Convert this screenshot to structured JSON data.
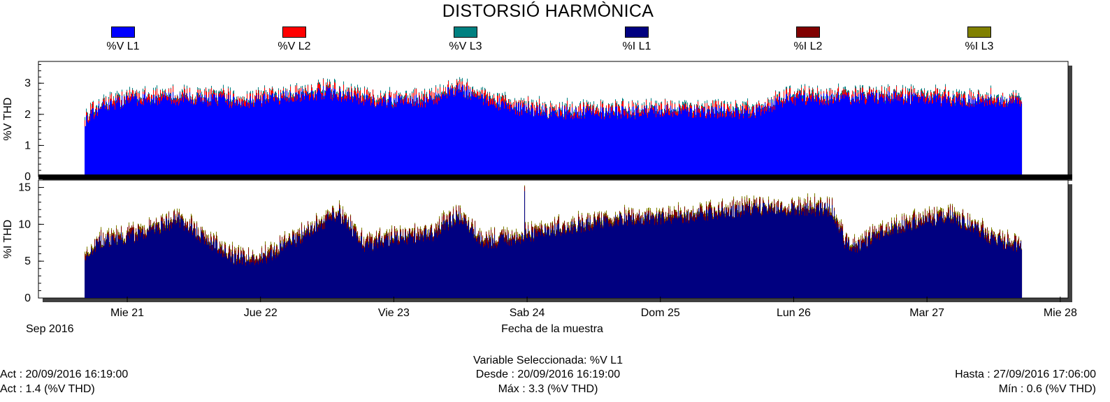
{
  "title": "DISTORSIÓ HARMÒNICA",
  "legend": [
    {
      "label": "%V L1",
      "color": "#0000ff"
    },
    {
      "label": "%V L2",
      "color": "#ff0000"
    },
    {
      "label": "%V L3",
      "color": "#008080"
    },
    {
      "label": "%I L1",
      "color": "#000080"
    },
    {
      "label": "%I L2",
      "color": "#800000"
    },
    {
      "label": "%I L3",
      "color": "#808000"
    }
  ],
  "chart_data": [
    {
      "type": "bar",
      "ylabel": "%V THD",
      "ylim": [
        0,
        3.7
      ],
      "yticks": [
        0,
        1,
        2,
        3
      ],
      "series": [
        {
          "name": "%V L1",
          "color": "#0000ff"
        },
        {
          "name": "%V L2",
          "color": "#ff0000"
        },
        {
          "name": "%V L3",
          "color": "#008080"
        }
      ],
      "x_range": [
        "2016-09-20 16:19",
        "2016-09-27 17:06"
      ],
      "profile_days": [
        0.0,
        0.15,
        0.4,
        0.8,
        1.2,
        1.5,
        1.8,
        2.2,
        2.6,
        2.8,
        3.0,
        3.2,
        3.5,
        4.0,
        4.5,
        5.0,
        5.3,
        5.6,
        6.0,
        6.5,
        7.0
      ],
      "profile_values": [
        1.8,
        2.3,
        2.5,
        2.5,
        2.4,
        2.55,
        2.7,
        2.4,
        2.45,
        2.8,
        2.5,
        2.2,
        2.05,
        2.05,
        2.1,
        2.05,
        2.5,
        2.5,
        2.55,
        2.45,
        2.4
      ],
      "max": 3.3,
      "min": 0.6
    },
    {
      "type": "bar",
      "ylabel": "%I THD",
      "ylim": [
        0,
        16
      ],
      "yticks": [
        0,
        5,
        10,
        15
      ],
      "series": [
        {
          "name": "%I L1",
          "color": "#000080"
        },
        {
          "name": "%I L2",
          "color": "#800000"
        },
        {
          "name": "%I L3",
          "color": "#808000"
        }
      ],
      "x_range": [
        "2016-09-20 16:19",
        "2016-09-27 17:06"
      ],
      "profile_days": [
        0.0,
        0.1,
        0.4,
        0.7,
        0.9,
        1.1,
        1.3,
        1.6,
        1.9,
        2.1,
        2.3,
        2.6,
        2.8,
        3.0,
        3.2,
        3.6,
        4.0,
        4.5,
        5.0,
        5.3,
        5.6,
        5.7,
        5.8,
        6.0,
        6.3,
        6.5,
        6.8,
        7.0
      ],
      "profile_values": [
        5,
        7.5,
        8.5,
        10.5,
        8,
        5.5,
        5,
        8,
        11.5,
        7,
        8,
        8.5,
        11,
        7.5,
        8,
        9.5,
        10.5,
        11,
        12,
        12,
        12,
        7.5,
        7,
        9,
        10.5,
        11,
        8,
        7
      ],
      "spike": {
        "day": 3.3,
        "value": 14.5
      },
      "xticks": [
        "Mie 21",
        "Jue 22",
        "Vie 23",
        "Sab 24",
        "Dom 25",
        "Lun 26",
        "Mar 27",
        "Mie 28"
      ],
      "xlabel": "Fecha de la muestra",
      "x_sublabel": "Sep 2016"
    }
  ],
  "footer": {
    "selected": "Variable Seleccionada: %V L1",
    "act_date": "Act : 20/09/2016 16:19:00",
    "act_value": "Act : 1.4 (%V THD)",
    "desde": "Desde : 20/09/2016 16:19:00",
    "max": "Máx : 3.3 (%V THD)",
    "hasta": "Hasta : 27/09/2016 17:06:00",
    "min": "Mín : 0.6 (%V THD)"
  }
}
